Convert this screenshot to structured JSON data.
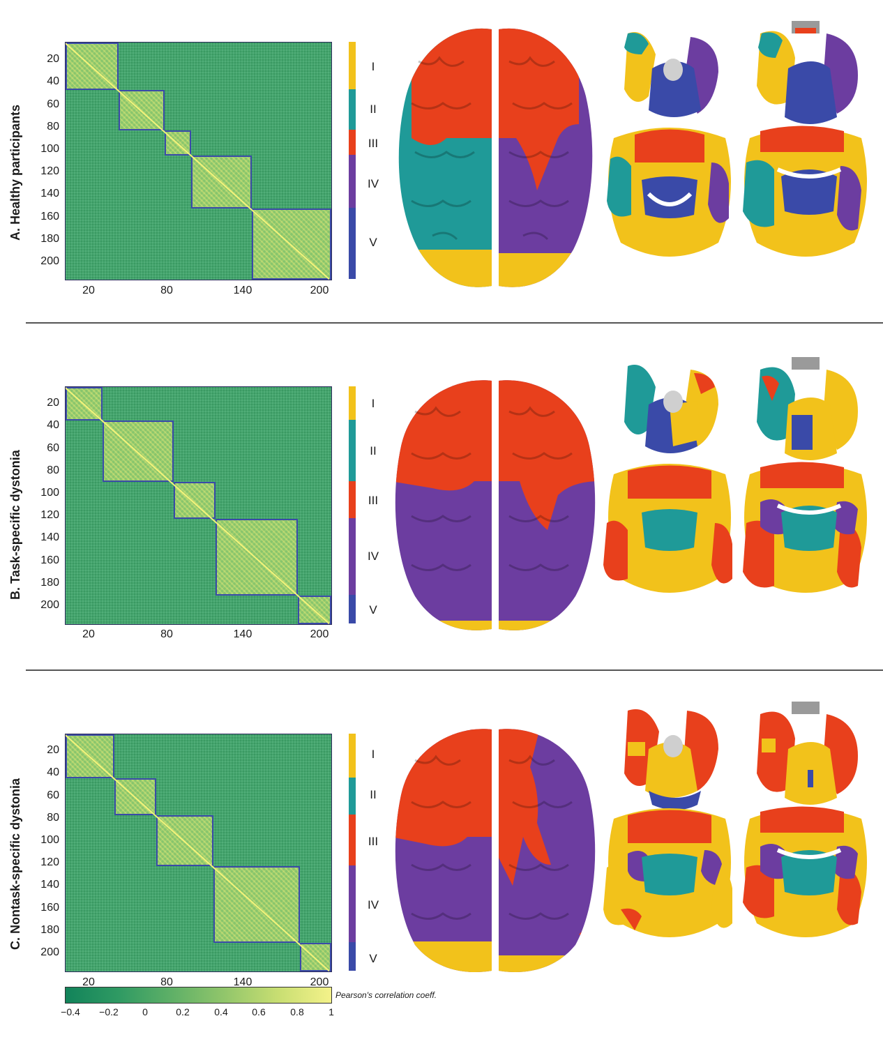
{
  "panels": [
    {
      "label": "A. Healthy participants",
      "y_ticks": [
        "20",
        "40",
        "60",
        "80",
        "100",
        "120",
        "140",
        "160",
        "180",
        "200"
      ],
      "x_ticks": [
        "20",
        "80",
        "140",
        "200"
      ],
      "modules": [
        "I",
        "II",
        "III",
        "IV",
        "V"
      ]
    },
    {
      "label": "B. Task-specific dystonia",
      "y_ticks": [
        "20",
        "40",
        "60",
        "80",
        "100",
        "120",
        "140",
        "160",
        "180",
        "200"
      ],
      "x_ticks": [
        "20",
        "80",
        "140",
        "200"
      ],
      "modules": [
        "I",
        "II",
        "III",
        "IV",
        "V"
      ]
    },
    {
      "label": "C. Nontask-specific dystonia",
      "y_ticks": [
        "20",
        "40",
        "60",
        "80",
        "100",
        "120",
        "140",
        "160",
        "180",
        "200"
      ],
      "x_ticks": [
        "20",
        "80",
        "140",
        "200"
      ],
      "modules": [
        "I",
        "II",
        "III",
        "IV",
        "V"
      ]
    }
  ],
  "module_colors": {
    "I": "#f2c21b",
    "II": "#1f9a98",
    "III": "#e8401c",
    "IV": "#6c3da0",
    "V": "#3a4aa8"
  },
  "colorbar": {
    "title": "Pearson's correlation coeff.",
    "ticks": [
      "−0.4",
      "−0.2",
      "0",
      "0.2",
      "0.4",
      "0.6",
      "0.8",
      "1"
    ]
  }
}
